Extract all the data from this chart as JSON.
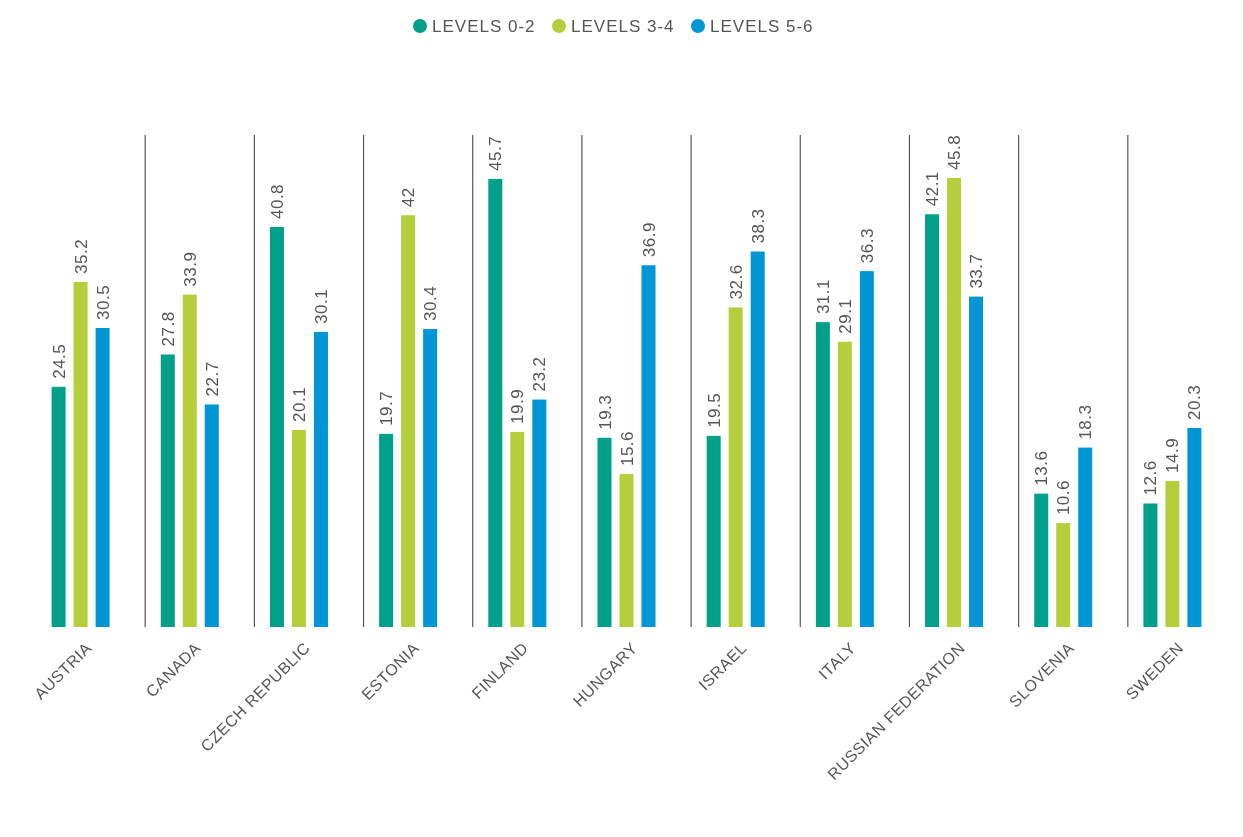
{
  "chart_data": {
    "type": "bar",
    "categories": [
      "AUSTRIA",
      "CANADA",
      "CZECH REPUBLIC",
      "ESTONIA",
      "FINLAND",
      "HUNGARY",
      "ISRAEL",
      "ITALY",
      "RUSSIAN FEDERATION",
      "SLOVENIA",
      "SWEDEN"
    ],
    "series": [
      {
        "name": "LEVELS 0-2",
        "color": "#00a08a",
        "values": [
          24.5,
          27.8,
          40.8,
          19.7,
          45.7,
          19.3,
          19.5,
          31.1,
          42.1,
          13.6,
          12.6
        ]
      },
      {
        "name": "LEVELS 3-4",
        "color": "#b5cf3c",
        "values": [
          35.2,
          33.9,
          20.1,
          42,
          19.9,
          15.6,
          32.6,
          29.1,
          45.8,
          10.6,
          14.9
        ]
      },
      {
        "name": "LEVELS 5-6",
        "color": "#0096d6",
        "values": [
          30.5,
          22.7,
          30.1,
          30.4,
          23.2,
          36.9,
          38.3,
          36.3,
          33.7,
          18.3,
          20.3
        ]
      }
    ],
    "data_labels": true,
    "grid": "x",
    "legend": "top"
  }
}
